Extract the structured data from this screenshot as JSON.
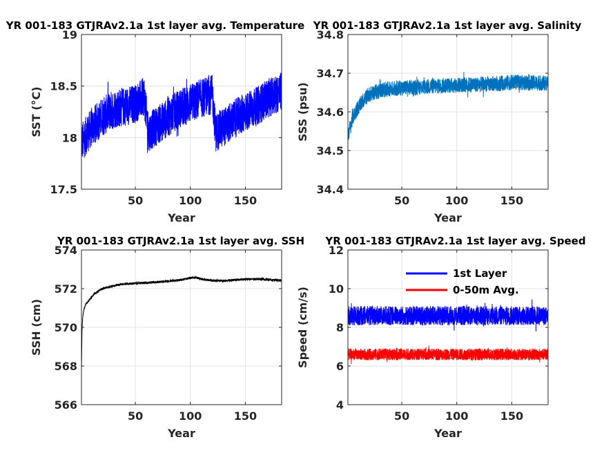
{
  "chart_data": [
    {
      "type": "line",
      "title": "YR 001-183 GTJRAv2.1a 1st layer avg. Temperature",
      "xlabel": "Year",
      "ylabel": "SST (°C)",
      "xlim": [
        1,
        183
      ],
      "ylim": [
        17.5,
        19
      ],
      "xticks": [
        50,
        100,
        150
      ],
      "yticks": [
        17.5,
        18,
        18.5,
        19
      ],
      "ytick_labels": [
        "17.5",
        "18",
        "18.5",
        "19"
      ],
      "grid": true,
      "series": [
        {
          "color": "#0000ff",
          "x": [
            1,
            10,
            20,
            30,
            40,
            50,
            58,
            62,
            70,
            80,
            90,
            100,
            110,
            120,
            123,
            130,
            140,
            150,
            160,
            170,
            183
          ],
          "y": [
            17.95,
            18.1,
            18.2,
            18.28,
            18.3,
            18.33,
            18.4,
            18.05,
            18.12,
            18.2,
            18.28,
            18.33,
            18.38,
            18.42,
            18.05,
            18.1,
            18.18,
            18.25,
            18.3,
            18.38,
            18.45
          ],
          "band": 0.38
        }
      ]
    },
    {
      "type": "line",
      "title": "YR 001-183 GTJRAv2.1a 1st layer avg. Salinity",
      "xlabel": "Year",
      "ylabel": "SSS (psu)",
      "xlim": [
        1,
        183
      ],
      "ylim": [
        34.4,
        34.8
      ],
      "xticks": [
        50,
        100,
        150
      ],
      "yticks": [
        34.4,
        34.5,
        34.6,
        34.7,
        34.8
      ],
      "ytick_labels": [
        "34.4",
        "34.5",
        "34.6",
        "34.7",
        "34.8"
      ],
      "grid": true,
      "series": [
        {
          "color": "#0072bd",
          "x": [
            1,
            3,
            6,
            10,
            15,
            20,
            30,
            40,
            50,
            70,
            90,
            110,
            130,
            150,
            170,
            183
          ],
          "y": [
            34.54,
            34.56,
            34.59,
            34.61,
            34.63,
            34.645,
            34.655,
            34.66,
            34.662,
            34.665,
            34.668,
            34.67,
            34.672,
            34.676,
            34.675,
            34.674
          ],
          "band": 0.04
        }
      ]
    },
    {
      "type": "line",
      "title": "YR 001-183 GTJRAv2.1a 1st layer avg. SSH",
      "xlabel": "Year",
      "ylabel": "SSH (cm)",
      "xlim": [
        1,
        183
      ],
      "ylim": [
        566,
        574
      ],
      "xticks": [
        50,
        100,
        150
      ],
      "yticks": [
        566,
        568,
        570,
        572,
        574
      ],
      "ytick_labels": [
        "566",
        "568",
        "570",
        "572",
        "574"
      ],
      "grid": true,
      "series": [
        {
          "color": "#000000",
          "x": [
            1,
            1.5,
            2,
            3,
            5,
            8,
            12,
            20,
            30,
            40,
            50,
            60,
            70,
            80,
            90,
            100,
            105,
            110,
            120,
            130,
            140,
            150,
            160,
            170,
            183
          ],
          "y": [
            567.7,
            569.8,
            570.4,
            570.9,
            571.2,
            571.4,
            571.7,
            572.0,
            572.15,
            572.25,
            572.28,
            572.3,
            572.35,
            572.38,
            572.45,
            572.55,
            572.58,
            572.5,
            572.42,
            572.4,
            572.45,
            572.48,
            572.5,
            572.47,
            572.42
          ],
          "band": 0.12
        }
      ]
    },
    {
      "type": "line",
      "title": "YR 001-183 GTJRAv2.1a 1st layer avg. Speed",
      "xlabel": "Year",
      "ylabel": "Speed (cm/s)",
      "xlim": [
        1,
        183
      ],
      "ylim": [
        4,
        12
      ],
      "xticks": [
        50,
        100,
        150
      ],
      "yticks": [
        4,
        6,
        8,
        10,
        12
      ],
      "ytick_labels": [
        "4",
        "6",
        "8",
        "10",
        "12"
      ],
      "grid": true,
      "legend": "top-center",
      "series": [
        {
          "name": "1st Layer",
          "color": "#0000ff",
          "x": [
            1,
            183
          ],
          "y": [
            8.6,
            8.6
          ],
          "band": 1.0
        },
        {
          "name": "0-50m Avg.",
          "color": "#ff0000",
          "x": [
            1,
            183
          ],
          "y": [
            6.6,
            6.6
          ],
          "band": 0.6
        }
      ]
    }
  ]
}
